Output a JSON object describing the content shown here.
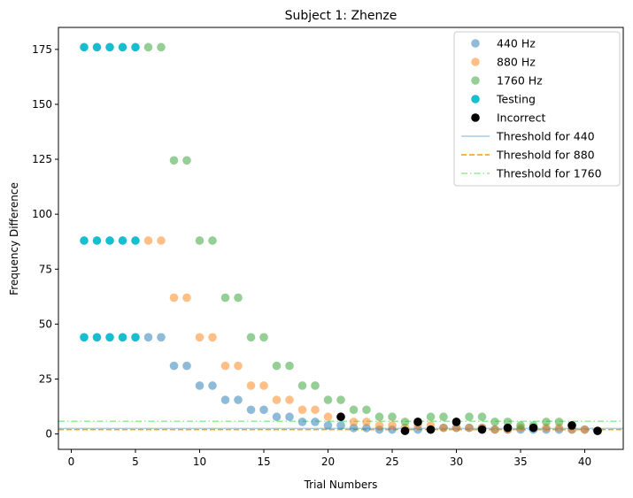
{
  "chart_data": {
    "type": "scatter",
    "title": "Subject 1: Zhenze",
    "xlabel": "Trial Numbers",
    "ylabel": "Frequency Difference",
    "xlim": [
      -1,
      43
    ],
    "ylim": [
      -7,
      185
    ],
    "xticks": [
      0,
      5,
      10,
      15,
      20,
      25,
      30,
      35,
      40
    ],
    "yticks": [
      0,
      25,
      50,
      75,
      100,
      125,
      150,
      175
    ],
    "grid": false,
    "legend_position": "top-right",
    "series": [
      {
        "name": "440 Hz",
        "kind": "point",
        "color": "#1f77b4",
        "opacity": 0.5,
        "x": [
          6,
          7,
          8,
          9,
          10,
          11,
          12,
          13,
          14,
          15,
          16,
          17,
          18,
          19,
          20,
          21,
          22,
          23,
          24,
          25,
          26,
          27,
          28,
          29,
          30,
          31,
          32,
          33,
          34,
          35,
          36,
          37,
          38,
          39,
          40,
          41
        ],
        "y": [
          44,
          44,
          31,
          31,
          22,
          22,
          15.5,
          15.5,
          11,
          11,
          7.8,
          7.8,
          5.5,
          5.5,
          3.9,
          3.9,
          2.7,
          2.7,
          2,
          2,
          1.4,
          2,
          2,
          2.8,
          2.8,
          2.8,
          2.8,
          2,
          2,
          2,
          2,
          2,
          2,
          2,
          2,
          1.4
        ]
      },
      {
        "name": "880 Hz",
        "kind": "point",
        "color": "#ff7f0e",
        "opacity": 0.5,
        "x": [
          6,
          7,
          8,
          9,
          10,
          11,
          12,
          13,
          14,
          15,
          16,
          17,
          18,
          19,
          20,
          21,
          22,
          23,
          24,
          25,
          26,
          27,
          28,
          29,
          30,
          31,
          32,
          33,
          34,
          35,
          36,
          37,
          38,
          39,
          40,
          41
        ],
        "y": [
          88,
          88,
          62,
          62,
          44,
          44,
          31,
          31,
          22,
          22,
          15.5,
          15.5,
          11,
          11,
          7.8,
          7.8,
          5.5,
          5.5,
          3.9,
          3.9,
          2.8,
          3.9,
          3.9,
          2.8,
          2.8,
          2.8,
          2.8,
          2,
          2,
          2.8,
          2.8,
          2.8,
          2.8,
          2,
          2,
          1.4
        ]
      },
      {
        "name": "1760 Hz",
        "kind": "point",
        "color": "#2ca02c",
        "opacity": 0.5,
        "x": [
          6,
          7,
          8,
          9,
          10,
          11,
          12,
          13,
          14,
          15,
          16,
          17,
          18,
          19,
          20,
          21,
          22,
          23,
          24,
          25,
          26,
          27,
          28,
          29,
          30,
          31,
          32,
          33,
          34,
          35,
          36,
          37,
          38,
          39
        ],
        "y": [
          176,
          176,
          124.5,
          124.5,
          88,
          88,
          62,
          62,
          44,
          44,
          31,
          31,
          22,
          22,
          15.5,
          15.5,
          11,
          11,
          7.8,
          7.8,
          5.5,
          5.5,
          7.8,
          7.8,
          5.5,
          7.8,
          7.8,
          5.5,
          5.5,
          3.9,
          3.9,
          5.5,
          5.5,
          3.9
        ]
      },
      {
        "name": "Testing",
        "kind": "point",
        "color": "#17becf",
        "opacity": 1,
        "x": [
          1,
          2,
          3,
          4,
          5,
          1,
          2,
          3,
          4,
          5,
          1,
          2,
          3,
          4,
          5
        ],
        "y": [
          176,
          176,
          176,
          176,
          176,
          88,
          88,
          88,
          88,
          88,
          44,
          44,
          44,
          44,
          44
        ]
      },
      {
        "name": "Incorrect",
        "kind": "point",
        "color": "#000000",
        "opacity": 1,
        "x": [
          21,
          26,
          27,
          28,
          30,
          32,
          34,
          36,
          39,
          41
        ],
        "y": [
          7.8,
          1.4,
          5.5,
          2,
          5.5,
          2,
          2.8,
          2.8,
          3.9,
          1.4
        ]
      },
      {
        "name": "Threshold for 440",
        "kind": "hline",
        "value": 2.5,
        "color": "#a6cee3",
        "dash": "solid"
      },
      {
        "name": "Threshold for 880",
        "kind": "hline",
        "value": 2.0,
        "color": "#ff9f00",
        "dash": "dashed"
      },
      {
        "name": "Threshold for 1760",
        "kind": "hline",
        "value": 5.8,
        "color": "#90ee90",
        "dash": "dashdot"
      }
    ]
  }
}
